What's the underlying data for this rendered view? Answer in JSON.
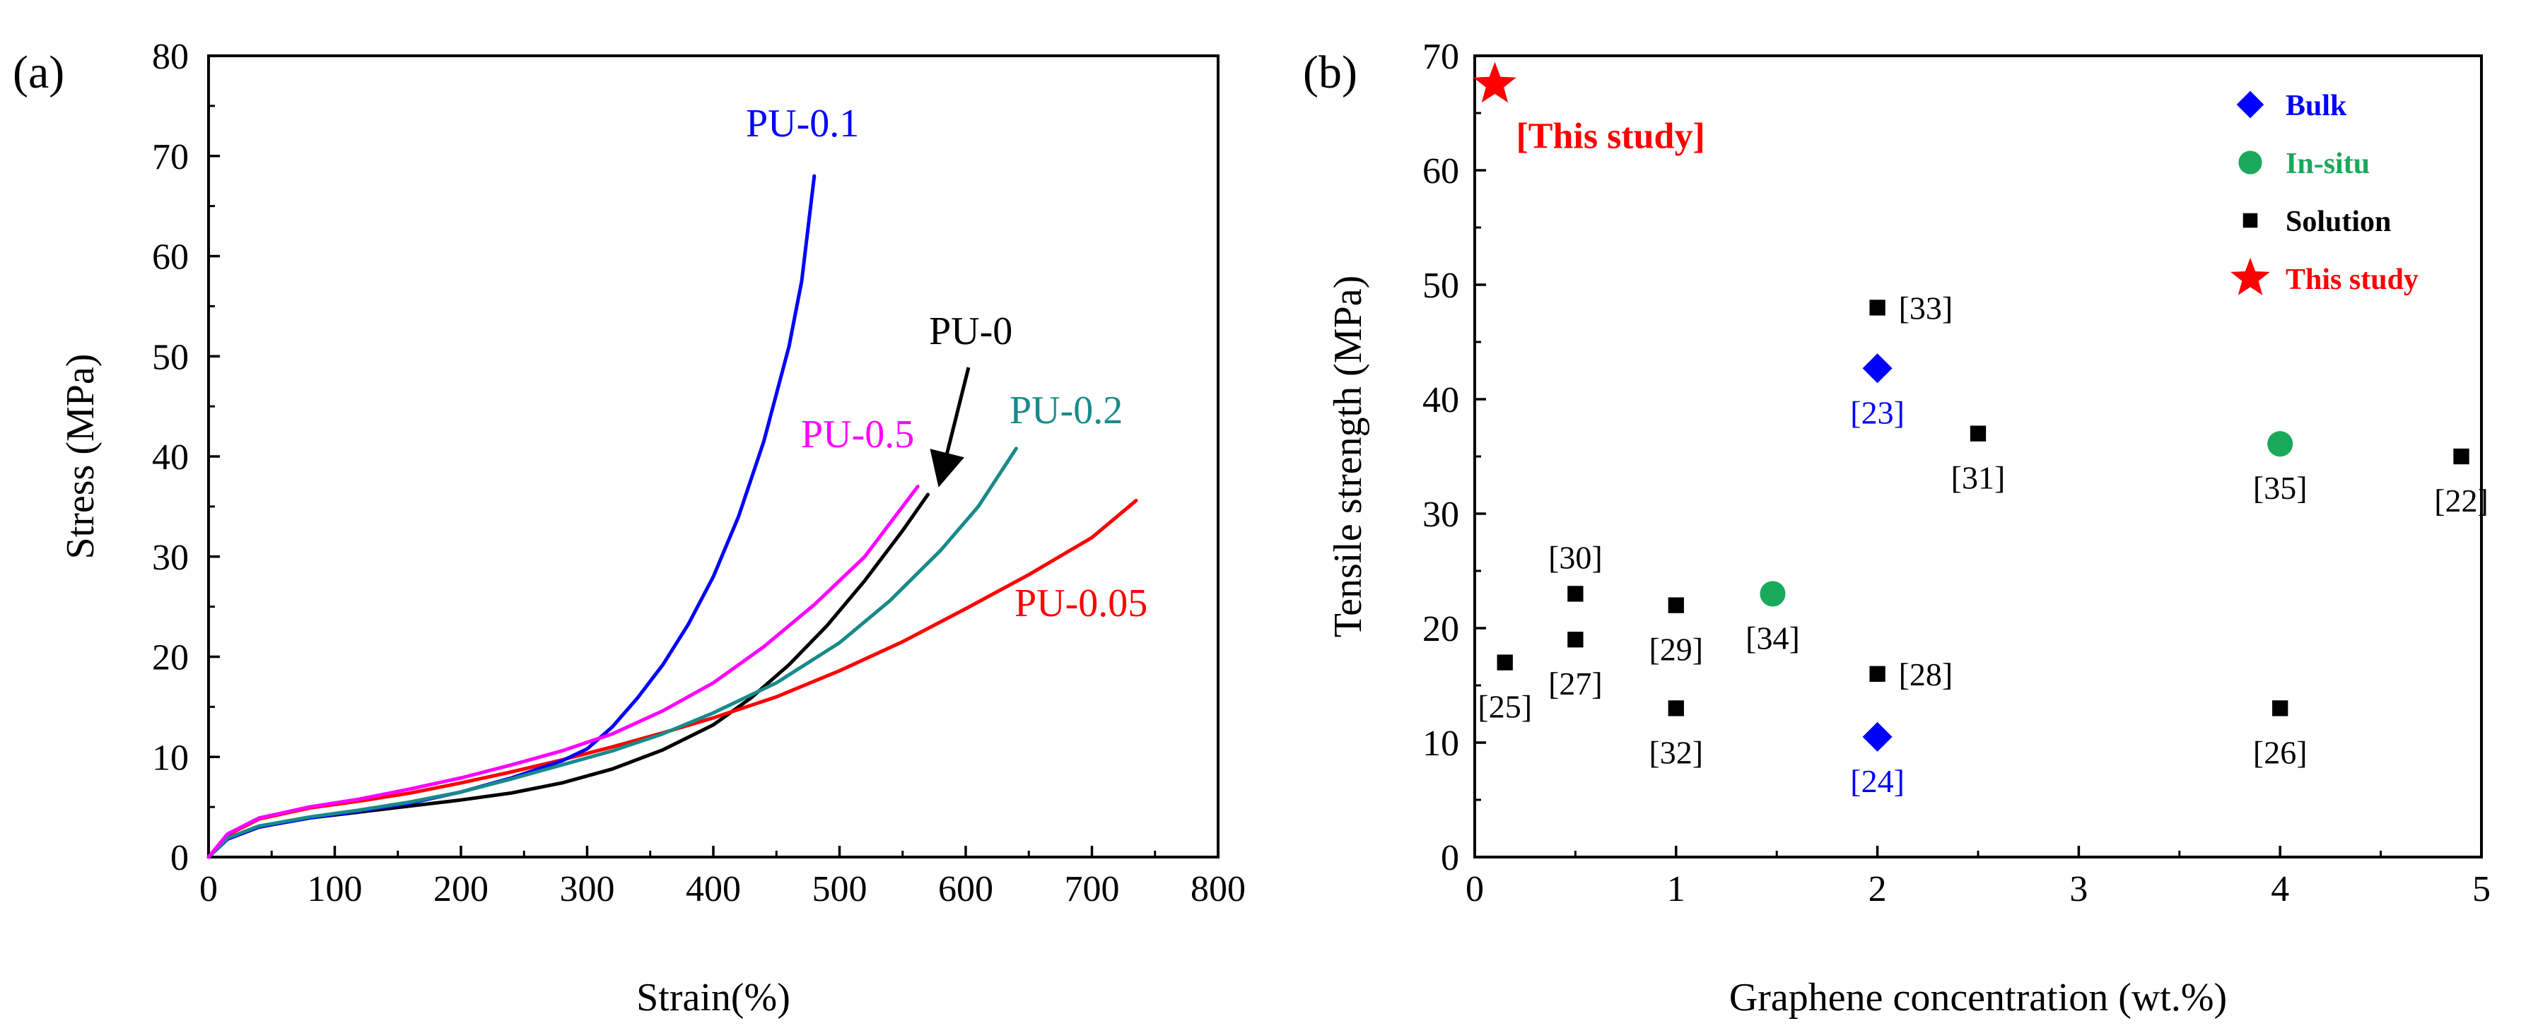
{
  "chart_data": [
    {
      "type": "line",
      "panel_label": "(a)",
      "xlabel": "Strain(%)",
      "ylabel": "Stress (MPa)",
      "xlim": [
        0,
        800
      ],
      "ylim": [
        0,
        80
      ],
      "xticks": [
        0,
        100,
        200,
        300,
        400,
        500,
        600,
        700,
        800
      ],
      "yticks": [
        0,
        10,
        20,
        30,
        40,
        50,
        60,
        70,
        80
      ],
      "series": [
        {
          "name": "PU-0",
          "color": "#000000",
          "x": [
            0,
            15,
            40,
            80,
            120,
            160,
            200,
            240,
            280,
            320,
            360,
            400,
            430,
            460,
            490,
            520,
            550,
            570
          ],
          "y": [
            0,
            1.8,
            3.0,
            3.9,
            4.5,
            5.1,
            5.7,
            6.4,
            7.4,
            8.8,
            10.7,
            13.2,
            15.9,
            19.2,
            23.1,
            27.6,
            32.6,
            36.2
          ]
        },
        {
          "name": "PU-0.05",
          "color": "#ff0000",
          "x": [
            0,
            15,
            40,
            80,
            120,
            160,
            200,
            240,
            280,
            320,
            360,
            400,
            450,
            500,
            550,
            600,
            650,
            700,
            735
          ],
          "y": [
            0,
            2.2,
            3.8,
            4.9,
            5.6,
            6.4,
            7.4,
            8.5,
            9.7,
            11.0,
            12.4,
            13.9,
            16.0,
            18.6,
            21.5,
            24.8,
            28.2,
            31.9,
            35.6
          ]
        },
        {
          "name": "PU-0.1",
          "color": "#0000ff",
          "x": [
            0,
            15,
            40,
            80,
            120,
            160,
            200,
            240,
            280,
            300,
            320,
            340,
            360,
            380,
            400,
            420,
            440,
            460,
            470,
            480
          ],
          "y": [
            0,
            1.8,
            3.0,
            3.9,
            4.6,
            5.4,
            6.5,
            7.9,
            9.6,
            10.8,
            13.0,
            15.9,
            19.2,
            23.2,
            28.0,
            34.0,
            41.5,
            51.0,
            57.5,
            68.0
          ]
        },
        {
          "name": "PU-0.2",
          "color": "#188a8a",
          "x": [
            0,
            15,
            40,
            80,
            120,
            160,
            200,
            240,
            280,
            320,
            360,
            400,
            450,
            500,
            540,
            580,
            610,
            640
          ],
          "y": [
            0,
            1.9,
            3.1,
            4.0,
            4.7,
            5.5,
            6.5,
            7.8,
            9.2,
            10.6,
            12.3,
            14.4,
            17.4,
            21.4,
            25.6,
            30.6,
            35.0,
            40.8
          ]
        },
        {
          "name": "PU-0.5",
          "color": "#ff00ff",
          "x": [
            0,
            15,
            40,
            80,
            120,
            160,
            200,
            240,
            280,
            320,
            360,
            400,
            440,
            480,
            520,
            562
          ],
          "y": [
            0,
            2.3,
            3.9,
            5.0,
            5.8,
            6.8,
            7.9,
            9.2,
            10.6,
            12.3,
            14.6,
            17.4,
            21.0,
            25.2,
            30.0,
            37.0
          ]
        }
      ],
      "annotations": [
        {
          "text": "PU-0.1",
          "series": "PU-0.1"
        },
        {
          "text": "PU-0",
          "series": "PU-0",
          "arrow": true
        },
        {
          "text": "PU-0.2",
          "series": "PU-0.2"
        },
        {
          "text": "PU-0.5",
          "series": "PU-0.5"
        },
        {
          "text": "PU-0.05",
          "series": "PU-0.05"
        }
      ]
    },
    {
      "type": "scatter",
      "panel_label": "(b)",
      "xlabel": "Graphene concentration (wt.%)",
      "ylabel": "Tensile strength (MPa)",
      "xlim": [
        0,
        5
      ],
      "ylim": [
        0,
        70
      ],
      "xticks": [
        0,
        1,
        2,
        3,
        4,
        5
      ],
      "yticks": [
        0,
        10,
        20,
        30,
        40,
        50,
        60,
        70
      ],
      "legend": {
        "position": "top-right",
        "items": [
          {
            "label": "Bulk",
            "marker": "diamond",
            "color": "#0000ff"
          },
          {
            "label": "In-situ",
            "marker": "circle",
            "color": "#1aa85a"
          },
          {
            "label": "Solution",
            "marker": "square",
            "color": "#000000"
          },
          {
            "label": "This study",
            "marker": "star",
            "color": "#ff0000"
          }
        ]
      },
      "series": [
        {
          "name": "Bulk",
          "marker": "diamond",
          "color": "#0000ff",
          "label_color": "#0000ff",
          "points": [
            {
              "x": 2.0,
              "y": 42.7,
              "label": "[23]",
              "label_pos": "below"
            },
            {
              "x": 2.0,
              "y": 10.5,
              "label": "[24]",
              "label_pos": "below"
            }
          ]
        },
        {
          "name": "In-situ",
          "marker": "circle",
          "color": "#1aa85a",
          "label_color": "#000000",
          "points": [
            {
              "x": 1.48,
              "y": 23.0,
              "label": "[34]",
              "label_pos": "below"
            },
            {
              "x": 4.0,
              "y": 36.1,
              "label": "[35]",
              "label_pos": "below"
            }
          ]
        },
        {
          "name": "Solution",
          "marker": "square",
          "color": "#000000",
          "label_color": "#000000",
          "points": [
            {
              "x": 0.15,
              "y": 17.0,
              "label": "[25]",
              "label_pos": "below"
            },
            {
              "x": 0.5,
              "y": 23.0,
              "label": "[30]",
              "label_pos": "above"
            },
            {
              "x": 0.5,
              "y": 19.0,
              "label": "[27]",
              "label_pos": "below"
            },
            {
              "x": 1.0,
              "y": 22.0,
              "label": "[29]",
              "label_pos": "below"
            },
            {
              "x": 1.0,
              "y": 13.0,
              "label": "[32]",
              "label_pos": "below"
            },
            {
              "x": 2.0,
              "y": 48.0,
              "label": "[33]",
              "label_pos": "right"
            },
            {
              "x": 2.0,
              "y": 16.0,
              "label": "[28]",
              "label_pos": "right"
            },
            {
              "x": 2.5,
              "y": 37.0,
              "label": "[31]",
              "label_pos": "below"
            },
            {
              "x": 4.0,
              "y": 13.0,
              "label": "[26]",
              "label_pos": "below"
            },
            {
              "x": 4.9,
              "y": 35.0,
              "label": "[22]",
              "label_pos": "below"
            }
          ]
        },
        {
          "name": "This study",
          "marker": "star",
          "color": "#ff0000",
          "label_color": "#ff0000",
          "points": [
            {
              "x": 0.1,
              "y": 67.5,
              "label": "[This study]",
              "label_pos": "below-right"
            }
          ]
        }
      ]
    }
  ]
}
